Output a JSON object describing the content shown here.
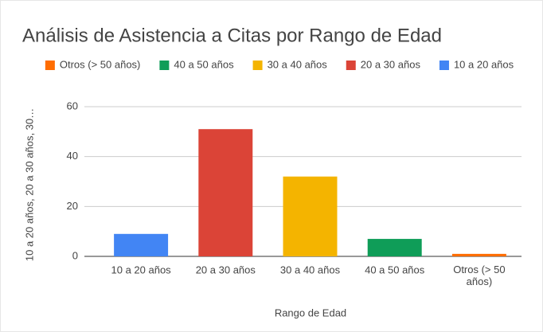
{
  "chart_data": {
    "type": "bar",
    "title": "Análisis de Asistencia a Citas por Rango de Edad",
    "x_label": "Rango de Edad",
    "y_label": "10 a 20 años, 20 a 30 años, 30…",
    "categories": [
      "10 a 20 años",
      "20 a 30 años",
      "30 a 40 años",
      "40 a 50 años",
      "Otros (> 50 años)"
    ],
    "series": [
      {
        "name": "Otros (> 50 años)",
        "color": "#ff6d01",
        "values": [
          null,
          null,
          null,
          null,
          1
        ]
      },
      {
        "name": "40 a 50 años",
        "color": "#0f9d58",
        "values": [
          null,
          null,
          null,
          7,
          null
        ]
      },
      {
        "name": "30 a 40 años",
        "color": "#f4b400",
        "values": [
          null,
          null,
          32,
          null,
          null
        ]
      },
      {
        "name": "20 a 30 años",
        "color": "#db4437",
        "values": [
          null,
          51,
          null,
          null,
          null
        ]
      },
      {
        "name": "10 a 20 años",
        "color": "#4285f4",
        "values": [
          9,
          null,
          null,
          null,
          null
        ]
      }
    ],
    "ylim": [
      0,
      60
    ],
    "yticks": [
      0,
      20,
      40,
      60
    ],
    "grid": true,
    "legend": "top"
  }
}
